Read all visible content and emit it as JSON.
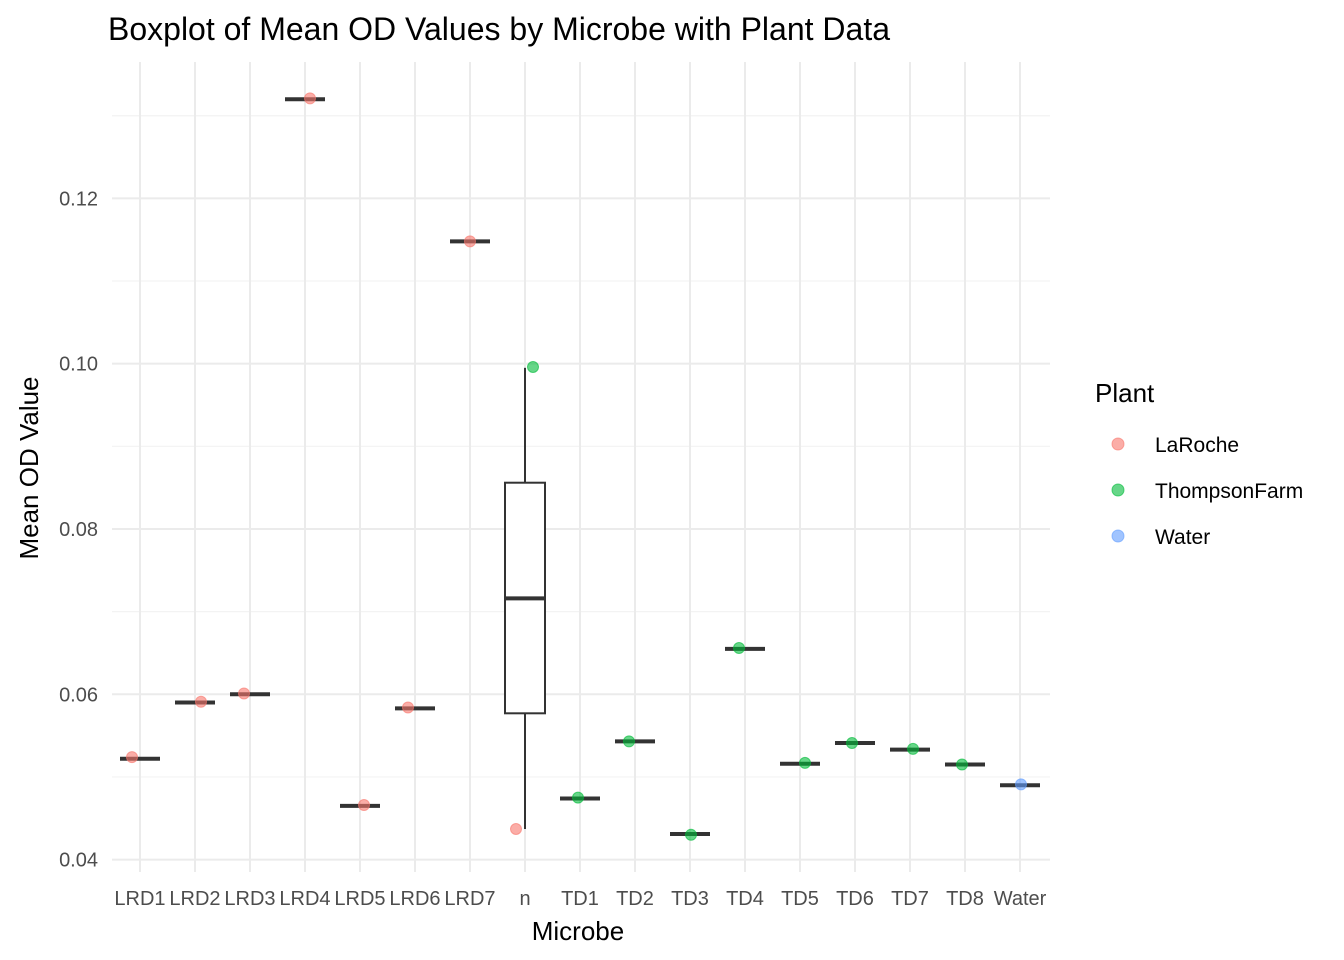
{
  "chart_data": {
    "type": "box",
    "title": "Boxplot of Mean OD Values by Microbe with Plant Data",
    "xlabel": "Microbe",
    "ylabel": "Mean OD Value",
    "ylim": [
      0.0385,
      0.1365
    ],
    "yticks": [
      0.04,
      0.06,
      0.08,
      0.1,
      0.12
    ],
    "ytick_labels": [
      "0.04",
      "0.06",
      "0.08",
      "0.10",
      "0.12"
    ],
    "grid": true,
    "legend": {
      "title": "Plant",
      "placement": "right",
      "entries": [
        {
          "label": "LaRoche",
          "color": "#f8766d"
        },
        {
          "label": "ThompsonFarm",
          "color": "#00ba38"
        },
        {
          "label": "Water",
          "color": "#619cff"
        }
      ]
    },
    "categories": [
      "LRD1",
      "LRD2",
      "LRD3",
      "LRD4",
      "LRD5",
      "LRD6",
      "LRD7",
      "n",
      "TD1",
      "TD2",
      "TD3",
      "TD4",
      "TD5",
      "TD6",
      "TD7",
      "TD8",
      "Water"
    ],
    "boxes": [
      {
        "category": "LRD1",
        "min": 0.0522,
        "q1": 0.0522,
        "median": 0.0522,
        "q3": 0.0522,
        "max": 0.0522
      },
      {
        "category": "LRD2",
        "min": 0.059,
        "q1": 0.059,
        "median": 0.059,
        "q3": 0.059,
        "max": 0.059
      },
      {
        "category": "LRD3",
        "min": 0.06,
        "q1": 0.06,
        "median": 0.06,
        "q3": 0.06,
        "max": 0.06
      },
      {
        "category": "LRD4",
        "min": 0.132,
        "q1": 0.132,
        "median": 0.132,
        "q3": 0.132,
        "max": 0.132
      },
      {
        "category": "LRD5",
        "min": 0.0465,
        "q1": 0.0465,
        "median": 0.0465,
        "q3": 0.0465,
        "max": 0.0465
      },
      {
        "category": "LRD6",
        "min": 0.0583,
        "q1": 0.0583,
        "median": 0.0583,
        "q3": 0.0583,
        "max": 0.0583
      },
      {
        "category": "LRD7",
        "min": 0.1148,
        "q1": 0.1148,
        "median": 0.1148,
        "q3": 0.1148,
        "max": 0.1148
      },
      {
        "category": "n",
        "min": 0.0437,
        "q1": 0.0577,
        "median": 0.0716,
        "q3": 0.0856,
        "max": 0.0995
      },
      {
        "category": "TD1",
        "min": 0.0474,
        "q1": 0.0474,
        "median": 0.0474,
        "q3": 0.0474,
        "max": 0.0474
      },
      {
        "category": "TD2",
        "min": 0.0543,
        "q1": 0.0543,
        "median": 0.0543,
        "q3": 0.0543,
        "max": 0.0543
      },
      {
        "category": "TD3",
        "min": 0.0431,
        "q1": 0.0431,
        "median": 0.0431,
        "q3": 0.0431,
        "max": 0.0431
      },
      {
        "category": "TD4",
        "min": 0.0655,
        "q1": 0.0655,
        "median": 0.0655,
        "q3": 0.0655,
        "max": 0.0655
      },
      {
        "category": "TD5",
        "min": 0.0516,
        "q1": 0.0516,
        "median": 0.0516,
        "q3": 0.0516,
        "max": 0.0516
      },
      {
        "category": "TD6",
        "min": 0.0541,
        "q1": 0.0541,
        "median": 0.0541,
        "q3": 0.0541,
        "max": 0.0541
      },
      {
        "category": "TD7",
        "min": 0.0533,
        "q1": 0.0533,
        "median": 0.0533,
        "q3": 0.0533,
        "max": 0.0533
      },
      {
        "category": "TD8",
        "min": 0.0515,
        "q1": 0.0515,
        "median": 0.0515,
        "q3": 0.0515,
        "max": 0.0515
      },
      {
        "category": "Water",
        "min": 0.049,
        "q1": 0.049,
        "median": 0.049,
        "q3": 0.049,
        "max": 0.049
      }
    ],
    "points": [
      {
        "category": "LRD1",
        "plant": "LaRoche",
        "value": 0.0524
      },
      {
        "category": "LRD2",
        "plant": "LaRoche",
        "value": 0.0591
      },
      {
        "category": "LRD3",
        "plant": "LaRoche",
        "value": 0.0601
      },
      {
        "category": "LRD4",
        "plant": "LaRoche",
        "value": 0.1321
      },
      {
        "category": "LRD5",
        "plant": "LaRoche",
        "value": 0.0466
      },
      {
        "category": "LRD6",
        "plant": "LaRoche",
        "value": 0.0584
      },
      {
        "category": "LRD7",
        "plant": "LaRoche",
        "value": 0.1148
      },
      {
        "category": "n",
        "plant": "ThompsonFarm",
        "value": 0.0996
      },
      {
        "category": "n",
        "plant": "LaRoche",
        "value": 0.0437
      },
      {
        "category": "TD1",
        "plant": "ThompsonFarm",
        "value": 0.0475
      },
      {
        "category": "TD2",
        "plant": "ThompsonFarm",
        "value": 0.0543
      },
      {
        "category": "TD3",
        "plant": "ThompsonFarm",
        "value": 0.043
      },
      {
        "category": "TD4",
        "plant": "ThompsonFarm",
        "value": 0.0656
      },
      {
        "category": "TD5",
        "plant": "ThompsonFarm",
        "value": 0.0517
      },
      {
        "category": "TD6",
        "plant": "ThompsonFarm",
        "value": 0.0541
      },
      {
        "category": "TD7",
        "plant": "ThompsonFarm",
        "value": 0.0534
      },
      {
        "category": "TD8",
        "plant": "ThompsonFarm",
        "value": 0.0515
      },
      {
        "category": "Water",
        "plant": "Water",
        "value": 0.0491
      }
    ]
  }
}
